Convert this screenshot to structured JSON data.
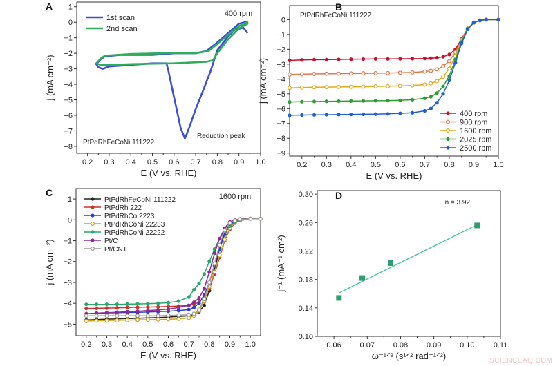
{
  "watermark": "SCIENCEAQ.COM",
  "chart_data": [
    {
      "panel": "A",
      "type": "line",
      "xlabel": "E (V vs. RHE)",
      "ylabel": "j (mA cm⁻²)",
      "xlim": [
        0.15,
        1.0
      ],
      "ylim": [
        -8.45,
        1.3
      ],
      "xticks": [
        0.2,
        0.3,
        0.4,
        0.5,
        0.6,
        0.7,
        0.8,
        0.9,
        1.0
      ],
      "xtick_labels": [
        "0.2",
        "0.3",
        "0.4",
        "0.5",
        "0.6",
        "0.7",
        "0.8",
        "0.9",
        "1.0"
      ],
      "yticks": [
        1,
        0,
        -1,
        -2,
        -3,
        -4,
        -5,
        -6,
        -7,
        -8
      ],
      "ytick_labels": [
        "1",
        "0",
        "−1",
        "−2",
        "−3",
        "−4",
        "−5",
        "−6",
        "−7",
        "−8"
      ],
      "legend_position": "top-left",
      "annotations": [
        "400 rpm",
        "PtPdRhFeCoNi 111222",
        "Reduction peak"
      ],
      "series": [
        {
          "name": "1st scan",
          "color": "#3b4fd6",
          "marker": "none",
          "x": [
            0.94,
            0.92,
            0.88,
            0.85,
            0.8,
            0.77,
            0.74,
            0.7,
            0.67,
            0.65,
            0.63,
            0.61,
            0.59,
            0.575,
            0.565,
            0.5,
            0.4,
            0.35,
            0.3,
            0.27,
            0.25,
            0.24,
            0.26,
            0.28,
            0.35,
            0.5,
            0.6,
            0.7,
            0.75,
            0.8,
            0.85,
            0.9,
            0.94
          ],
          "y": [
            -0.7,
            -0.35,
            -0.5,
            -0.9,
            -1.8,
            -3.1,
            -4.2,
            -5.6,
            -6.8,
            -7.5,
            -6.8,
            -5.5,
            -4.2,
            -3.2,
            -2.65,
            -2.65,
            -2.75,
            -2.8,
            -2.85,
            -3.0,
            -2.9,
            -2.7,
            -2.4,
            -2.2,
            -2.1,
            -2.1,
            -2.0,
            -2.0,
            -1.85,
            -1.3,
            -0.7,
            -0.1,
            0.05
          ]
        },
        {
          "name": "2nd scan",
          "color": "#2fae5a",
          "marker": "dot",
          "x": [
            0.94,
            0.9,
            0.85,
            0.8,
            0.78,
            0.75,
            0.6,
            0.4,
            0.3,
            0.26,
            0.24,
            0.26,
            0.28,
            0.4,
            0.6,
            0.7,
            0.76,
            0.8,
            0.85,
            0.9,
            0.94
          ],
          "y": [
            -0.1,
            -0.4,
            -1.1,
            -2.0,
            -2.45,
            -2.55,
            -2.65,
            -2.7,
            -2.75,
            -2.75,
            -2.65,
            -2.35,
            -2.15,
            -2.05,
            -1.98,
            -2.0,
            -1.85,
            -1.4,
            -0.8,
            -0.25,
            0.0
          ]
        }
      ]
    },
    {
      "panel": "B",
      "type": "line",
      "xlabel": "E (V vs. RHE)",
      "ylabel": "j (mA cm⁻²)",
      "xlim": [
        0.15,
        1.0
      ],
      "ylim": [
        -9.2,
        0.95
      ],
      "xticks": [
        0.2,
        0.3,
        0.4,
        0.5,
        0.6,
        0.7,
        0.8,
        0.9,
        1.0
      ],
      "xtick_labels": [
        "0.2",
        "0.3",
        "0.4",
        "0.5",
        "0.6",
        "0.7",
        "0.8",
        "0.9",
        "1.0"
      ],
      "yticks": [
        0,
        -1,
        -2,
        -3,
        -4,
        -5,
        -6,
        -7,
        -8,
        -9
      ],
      "ytick_labels": [
        "0",
        "−1",
        "−2",
        "−3",
        "−4",
        "−5",
        "−6",
        "−7",
        "−8",
        "−9"
      ],
      "legend_position": "bottom-right",
      "annotations": [
        "PtPdRhFeCoNi 111222"
      ],
      "x": [
        0.15,
        0.2,
        0.25,
        0.3,
        0.35,
        0.4,
        0.45,
        0.5,
        0.55,
        0.6,
        0.65,
        0.7,
        0.725,
        0.75,
        0.775,
        0.8,
        0.825,
        0.85,
        0.875,
        0.9,
        0.925,
        0.95,
        1.0
      ],
      "series": [
        {
          "name": "400 rpm",
          "color": "#c8102e",
          "marker": "filled",
          "y": [
            -2.75,
            -2.72,
            -2.7,
            -2.7,
            -2.68,
            -2.67,
            -2.66,
            -2.65,
            -2.65,
            -2.64,
            -2.63,
            -2.62,
            -2.6,
            -2.57,
            -2.5,
            -2.35,
            -2.0,
            -1.3,
            -0.6,
            -0.2,
            -0.05,
            0,
            0
          ]
        },
        {
          "name": "900 rpm",
          "color": "#e0774a",
          "marker": "hollow",
          "y": [
            -3.7,
            -3.68,
            -3.66,
            -3.65,
            -3.64,
            -3.63,
            -3.62,
            -3.61,
            -3.6,
            -3.58,
            -3.56,
            -3.5,
            -3.45,
            -3.35,
            -3.15,
            -2.8,
            -2.2,
            -1.35,
            -0.6,
            -0.2,
            -0.05,
            0,
            0
          ]
        },
        {
          "name": "1600 rpm",
          "color": "#e6a817",
          "marker": "hollow",
          "y": [
            -4.6,
            -4.58,
            -4.56,
            -4.55,
            -4.54,
            -4.53,
            -4.52,
            -4.5,
            -4.49,
            -4.47,
            -4.44,
            -4.38,
            -4.3,
            -4.15,
            -3.85,
            -3.3,
            -2.45,
            -1.45,
            -0.6,
            -0.2,
            -0.05,
            0,
            0
          ]
        },
        {
          "name": "2025 rpm",
          "color": "#2ca02c",
          "marker": "filled",
          "y": [
            -5.55,
            -5.53,
            -5.52,
            -5.51,
            -5.5,
            -5.49,
            -5.48,
            -5.47,
            -5.46,
            -5.44,
            -5.4,
            -5.3,
            -5.2,
            -4.95,
            -4.5,
            -3.8,
            -2.7,
            -1.5,
            -0.6,
            -0.2,
            -0.05,
            0,
            0
          ]
        },
        {
          "name": "2500 rpm",
          "color": "#1f5fd0",
          "marker": "filled",
          "y": [
            -6.45,
            -6.43,
            -6.42,
            -6.41,
            -6.4,
            -6.39,
            -6.38,
            -6.37,
            -6.35,
            -6.32,
            -6.28,
            -6.15,
            -6.0,
            -5.6,
            -5.0,
            -4.1,
            -2.9,
            -1.6,
            -0.65,
            -0.2,
            -0.05,
            0,
            0
          ]
        }
      ]
    },
    {
      "panel": "C",
      "type": "line",
      "xlabel": "E (V vs. RHE)",
      "ylabel": "j (mA cm⁻²)",
      "xlim": [
        0.15,
        1.05
      ],
      "ylim": [
        -5.55,
        1.5
      ],
      "xticks": [
        0.2,
        0.3,
        0.4,
        0.5,
        0.6,
        0.7,
        0.8,
        0.9,
        1.0
      ],
      "xtick_labels": [
        "0.2",
        "0.3",
        "0.4",
        "0.5",
        "0.6",
        "0.7",
        "0.8",
        "0.9",
        "1.0"
      ],
      "yticks": [
        1,
        0,
        -1,
        -2,
        -3,
        -4,
        -5
      ],
      "ytick_labels": [
        "1",
        "0",
        "−1",
        "−2",
        "−3",
        "−4",
        "−5"
      ],
      "legend_position": "top-left",
      "annotations": [
        "1600 rpm"
      ],
      "x": [
        0.2,
        0.25,
        0.3,
        0.35,
        0.4,
        0.45,
        0.5,
        0.55,
        0.6,
        0.65,
        0.7,
        0.725,
        0.75,
        0.775,
        0.8,
        0.825,
        0.85,
        0.875,
        0.9,
        0.925,
        0.95,
        1.0,
        1.05
      ],
      "series": [
        {
          "name": "PtPdRhFeCoNi 111222",
          "color": "#222222",
          "marker": "filled",
          "y": [
            -4.8,
            -4.78,
            -4.76,
            -4.75,
            -4.73,
            -4.72,
            -4.7,
            -4.68,
            -4.66,
            -4.63,
            -4.6,
            -4.55,
            -4.4,
            -4.1,
            -3.4,
            -2.4,
            -1.4,
            -0.6,
            -0.2,
            -0.05,
            0,
            0.05,
            0.05
          ]
        },
        {
          "name": "PtPdRh 222",
          "color": "#d0312d",
          "marker": "filled",
          "y": [
            -4.25,
            -4.24,
            -4.23,
            -4.22,
            -4.2,
            -4.19,
            -4.18,
            -4.17,
            -4.15,
            -4.13,
            -4.1,
            -4.05,
            -3.95,
            -3.7,
            -3.3,
            -2.6,
            -1.8,
            -1.0,
            -0.45,
            -0.15,
            -0.03,
            0.05,
            0.05
          ]
        },
        {
          "name": "PtPdRhCo 2223",
          "color": "#2b3fc9",
          "marker": "filled",
          "y": [
            -4.5,
            -4.48,
            -4.46,
            -4.45,
            -4.44,
            -4.43,
            -4.42,
            -4.4,
            -4.38,
            -4.35,
            -4.3,
            -4.2,
            -4.0,
            -3.6,
            -3.0,
            -2.2,
            -1.4,
            -0.7,
            -0.25,
            -0.07,
            0,
            0.05,
            0.05
          ]
        },
        {
          "name": "PtPdRhCoNi 22233",
          "color": "#d4a017",
          "marker": "hollow",
          "y": [
            -4.85,
            -4.84,
            -4.83,
            -4.82,
            -4.81,
            -4.8,
            -4.79,
            -4.78,
            -4.77,
            -4.75,
            -4.7,
            -4.6,
            -4.35,
            -3.9,
            -3.2,
            -2.5,
            -1.7,
            -0.95,
            -0.4,
            -0.12,
            -0.02,
            0.05,
            0.05
          ]
        },
        {
          "name": "PtPdRhCoNi 22222",
          "color": "#2aa86b",
          "marker": "filled",
          "y": [
            -4.05,
            -4.05,
            -4.05,
            -4.05,
            -4.04,
            -4.03,
            -4.02,
            -4.0,
            -3.97,
            -3.9,
            -3.7,
            -3.35,
            -3.05,
            -2.6,
            -2.0,
            -1.4,
            -0.9,
            -0.55,
            -0.3,
            -0.12,
            -0.03,
            0.05,
            0.05
          ]
        },
        {
          "name": "Pt/C",
          "color": "#8a2a9a",
          "marker": "filled",
          "y": [
            -4.5,
            -4.47,
            -4.45,
            -4.43,
            -4.4,
            -4.38,
            -4.35,
            -4.32,
            -4.28,
            -4.2,
            -4.1,
            -3.95,
            -3.75,
            -3.3,
            -2.5,
            -1.6,
            -0.9,
            -0.4,
            -0.1,
            0,
            0.05,
            0.05,
            0.05
          ]
        },
        {
          "name": "Pt/CNT",
          "color": "#9a9a9a",
          "marker": "hollow",
          "y": [
            -4.6,
            -4.6,
            -4.6,
            -4.6,
            -4.6,
            -4.6,
            -4.6,
            -4.6,
            -4.58,
            -4.57,
            -4.55,
            -4.5,
            -4.3,
            -3.8,
            -3.0,
            -2.1,
            -1.2,
            -0.5,
            -0.15,
            -0.03,
            0.03,
            0.05,
            0.05
          ]
        }
      ]
    },
    {
      "panel": "D",
      "type": "scatter",
      "xlabel": "ω⁻¹ᐟ² (s¹ᐟ² rad⁻¹ᐟ²)",
      "ylabel": "j⁻¹ (mA⁻¹ cm²)",
      "xlim": [
        0.055,
        0.11
      ],
      "ylim": [
        0.1,
        0.305
      ],
      "xticks": [
        0.06,
        0.07,
        0.08,
        0.09,
        0.1,
        0.11
      ],
      "xtick_labels": [
        "0.06",
        "0.07",
        "0.08",
        "0.09",
        "0.10",
        "0.11"
      ],
      "yticks": [
        0.3,
        0.26,
        0.22,
        0.18,
        0.14,
        0.1
      ],
      "ytick_labels": [
        "0.30",
        "0.26",
        "0.22",
        "0.18",
        "0.14",
        "0.10"
      ],
      "annotations": [
        "n = 3.92"
      ],
      "series": [
        {
          "color": "#2e9e6e",
          "marker": "square",
          "x": [
            0.0615,
            0.0685,
            0.077,
            0.103
          ],
          "y": [
            0.154,
            0.182,
            0.203,
            0.256
          ]
        }
      ],
      "fit_line": {
        "color": "#3cc39a",
        "x": [
          0.0615,
          0.103
        ],
        "y": [
          0.161,
          0.257
        ]
      }
    }
  ]
}
